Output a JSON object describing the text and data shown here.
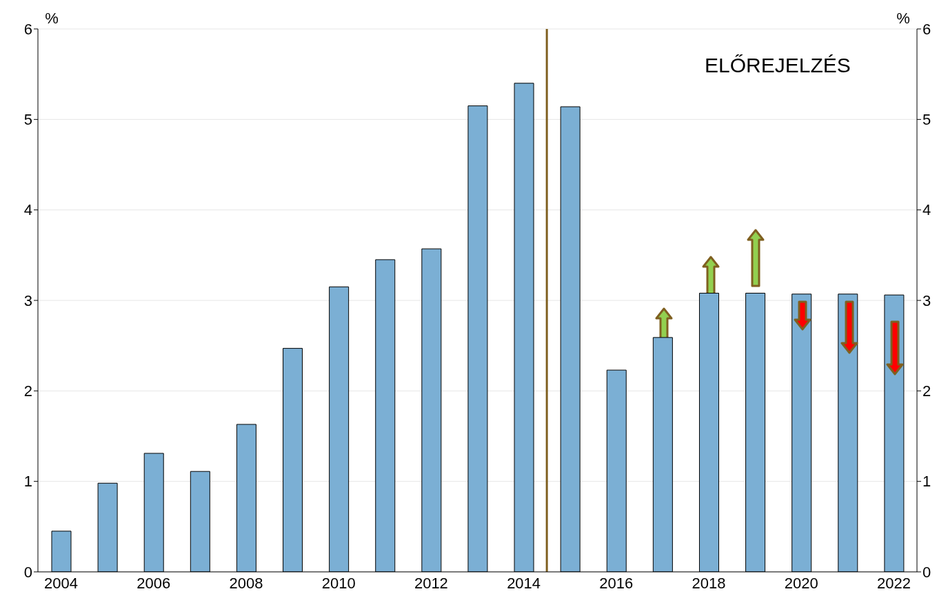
{
  "chart_data": {
    "type": "bar",
    "x": [
      2004,
      2005,
      2006,
      2007,
      2008,
      2009,
      2010,
      2011,
      2012,
      2013,
      2014,
      2015,
      2016,
      2017,
      2018,
      2019,
      2020,
      2021,
      2022
    ],
    "values": [
      0.45,
      0.98,
      1.31,
      1.11,
      1.63,
      2.47,
      3.15,
      3.45,
      3.57,
      5.15,
      5.4,
      5.14,
      2.23,
      2.59,
      3.08,
      3.08,
      3.07,
      3.07,
      3.06
    ],
    "color": "#7bafd4",
    "xlim": [
      2003.5,
      2022.5
    ],
    "xticks": [
      2004,
      2006,
      2008,
      2010,
      2012,
      2014,
      2016,
      2018,
      2020,
      2022
    ],
    "ylim": [
      0,
      6
    ],
    "yticks": [
      0,
      1,
      2,
      3,
      4,
      5,
      6
    ],
    "y2lim": [
      0,
      6
    ],
    "y2ticks": [
      0,
      1,
      2,
      3,
      4,
      5,
      6
    ],
    "ylabel": "%",
    "y2label": "%",
    "grid": "y",
    "ref_lines": [
      {
        "axis": "x",
        "value": 2014.5,
        "color": "#7f6020"
      }
    ],
    "annotations": [
      "ELŐREJELZÉS"
    ]
  }
}
